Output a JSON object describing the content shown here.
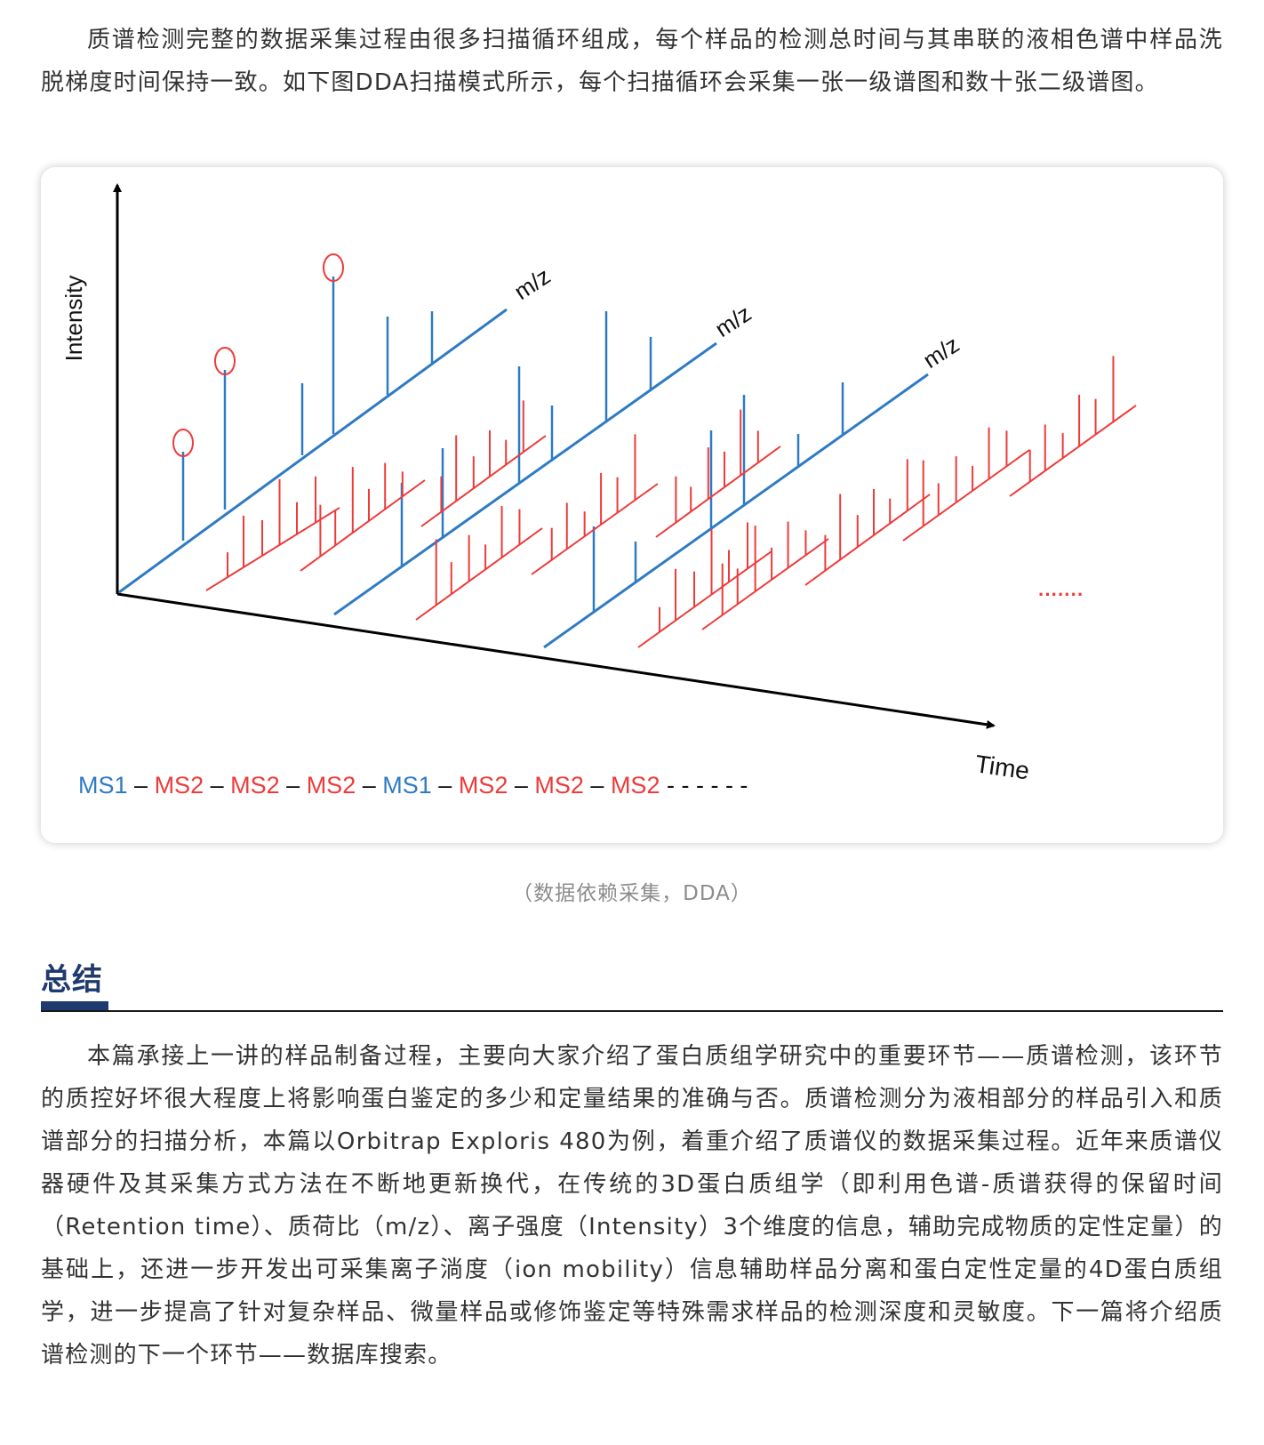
{
  "intro_paragraph": "质谱检测完整的数据采集过程由很多扫描循环组成，每个样品的检测总时间与其串联的液相色谱中样品洗脱梯度时间保持一致。如下图DDA扫描模式所示，每个扫描循环会采集一张一级谱图和数十张二级谱图。",
  "figure": {
    "y_axis_label": "Intensity",
    "x_axis_label": "Time",
    "mz_label": "m/z",
    "ellipsis": "·······",
    "colors": {
      "ms1": "#2e7bc4",
      "ms2": "#ee3a3a",
      "axis": "#000000"
    },
    "sequence": [
      {
        "text": "MS1",
        "type": "ms1"
      },
      {
        "text": " – ",
        "type": "sep"
      },
      {
        "text": "MS2",
        "type": "ms2"
      },
      {
        "text": " – ",
        "type": "sep"
      },
      {
        "text": "MS2",
        "type": "ms2"
      },
      {
        "text": " – ",
        "type": "sep"
      },
      {
        "text": "MS2",
        "type": "ms2"
      },
      {
        "text": " – ",
        "type": "sep"
      },
      {
        "text": "MS1",
        "type": "ms1"
      },
      {
        "text": " – ",
        "type": "sep"
      },
      {
        "text": "MS2",
        "type": "ms2"
      },
      {
        "text": " – ",
        "type": "sep"
      },
      {
        "text": "MS2",
        "type": "ms2"
      },
      {
        "text": " – ",
        "type": "sep"
      },
      {
        "text": "MS2",
        "type": "ms2"
      },
      {
        "text": " - - - - - -",
        "type": "sep"
      }
    ]
  },
  "caption": "（数据依赖采集，DDA）",
  "section_title": "总结",
  "summary_paragraph": "本篇承接上一讲的样品制备过程，主要向大家介绍了蛋白质组学研究中的重要环节——质谱检测，该环节的质控好坏很大程度上将影响蛋白鉴定的多少和定量结果的准确与否。质谱检测分为液相部分的样品引入和质谱部分的扫描分析，本篇以Orbitrap Exploris 480为例，着重介绍了质谱仪的数据采集过程。近年来质谱仪器硬件及其采集方式方法在不断地更新换代，在传统的3D蛋白质组学（即利用色谱-质谱获得的保留时间（Retention time）、质荷比（m/z）、离子强度（Intensity）3个维度的信息，辅助完成物质的定性定量）的基础上，还进一步开发出可采集离子淌度（ion mobility）信息辅助样品分离和蛋白定性定量的4D蛋白质组学，进一步提高了针对复杂样品、微量样品或修饰鉴定等特殊需求样品的检测深度和灵敏度。下一篇将介绍质谱检测的下一个环节——数据库搜索。"
}
